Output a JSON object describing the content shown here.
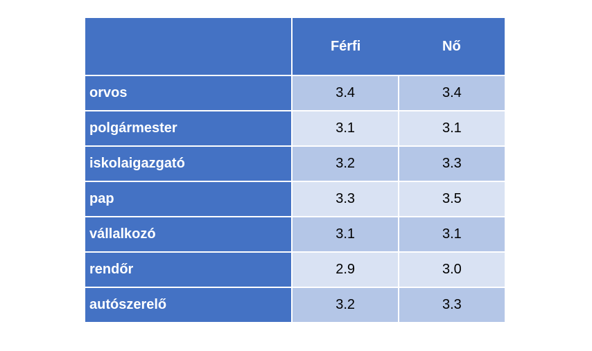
{
  "table": {
    "columns": [
      "",
      "Férfi",
      "Nő"
    ],
    "rows": [
      {
        "label": "orvos",
        "ferfi": "3.4",
        "no": "3.4"
      },
      {
        "label": "polgármester",
        "ferfi": "3.1",
        "no": "3.1"
      },
      {
        "label": "iskolaigazgató",
        "ferfi": "3.2",
        "no": "3.3"
      },
      {
        "label": "pap",
        "ferfi": "3.3",
        "no": "3.5"
      },
      {
        "label": "vállalkozó",
        "ferfi": "3.1",
        "no": "3.1"
      },
      {
        "label": "rendőr",
        "ferfi": "2.9",
        "no": "3.0"
      },
      {
        "label": "autószerelő",
        "ferfi": "3.2",
        "no": "3.3"
      }
    ]
  },
  "colors": {
    "header_bg": "#4472c4",
    "row_odd_bg": "#b4c6e7",
    "row_even_bg": "#d9e2f3",
    "header_text": "#ffffff"
  }
}
